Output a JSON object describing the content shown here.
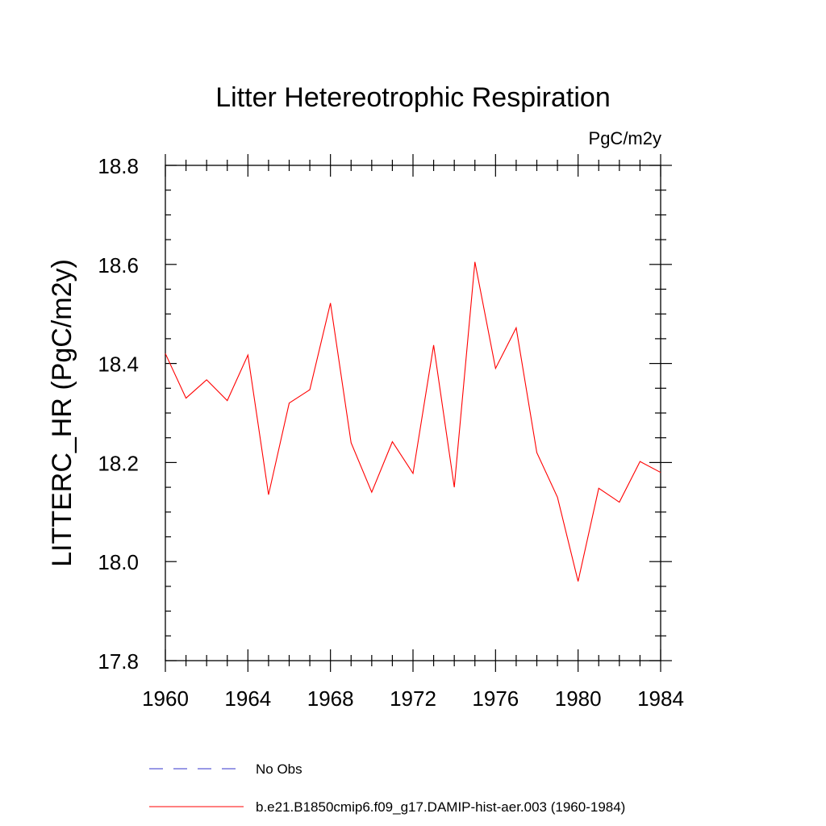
{
  "chart_data": {
    "type": "line",
    "title": "Litter Hetereotrophic Respiration",
    "units": "PgC/m2y",
    "ylabel": "LITTERC_HR  (PgC/m2y)",
    "xlabel": "",
    "xlim": [
      1960,
      1984
    ],
    "ylim": [
      17.8,
      18.8
    ],
    "x_ticks": [
      1960,
      1964,
      1968,
      1972,
      1976,
      1980,
      1984
    ],
    "y_ticks": [
      17.8,
      18.0,
      18.2,
      18.4,
      18.6,
      18.8
    ],
    "x_tick_labels": [
      "1960",
      "1964",
      "1968",
      "1972",
      "1976",
      "1980",
      "1984"
    ],
    "y_tick_labels": [
      "17.8",
      "18.0",
      "18.2",
      "18.4",
      "18.6",
      "18.8"
    ],
    "grid": false,
    "legend_position": "bottom",
    "series": [
      {
        "name": "b.e21.B1850cmip6.f09_g17.DAMIP-hist-aer.003 (1960-1984)",
        "color": "#ff0000",
        "style": "solid",
        "x": [
          1960,
          1961,
          1962,
          1963,
          1964,
          1965,
          1966,
          1967,
          1968,
          1969,
          1970,
          1971,
          1972,
          1973,
          1974,
          1975,
          1976,
          1977,
          1978,
          1979,
          1980,
          1981,
          1982,
          1983,
          1984
        ],
        "y": [
          18.42,
          18.33,
          18.367,
          18.325,
          18.417,
          18.135,
          18.32,
          18.347,
          18.522,
          18.24,
          18.14,
          18.242,
          18.178,
          18.437,
          18.15,
          18.605,
          18.39,
          18.472,
          18.22,
          18.13,
          17.96,
          18.148,
          18.12,
          18.202,
          18.18
        ]
      }
    ],
    "legend": [
      {
        "label": "No Obs",
        "color": "#3333cc",
        "style": "dashed"
      },
      {
        "label": "b.e21.B1850cmip6.f09_g17.DAMIP-hist-aer.003 (1960-1984)",
        "color": "#ff0000",
        "style": "solid"
      }
    ]
  }
}
